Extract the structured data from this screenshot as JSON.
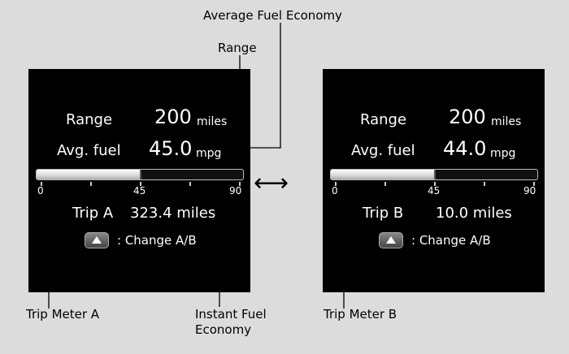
{
  "callouts": {
    "average_fuel_economy": "Average Fuel Economy",
    "range": "Range",
    "trip_meter_a": "Trip Meter A",
    "instant_fuel_economy_line1": "Instant Fuel",
    "instant_fuel_economy_line2": "Economy",
    "trip_meter_b": "Trip Meter B"
  },
  "screen_a": {
    "range_label": "Range",
    "range_value": "200",
    "range_unit": "miles",
    "avg_label": "Avg. fuel",
    "avg_value": "45.0",
    "avg_unit": "mpg",
    "ticks": [
      "0",
      "45",
      "90"
    ],
    "instant_fuel_fraction": 0.5,
    "trip_label": "Trip A",
    "trip_value": "323.4 miles",
    "change_label": ": Change A/B"
  },
  "screen_b": {
    "range_label": "Range",
    "range_value": "200",
    "range_unit": "miles",
    "avg_label": "Avg. fuel",
    "avg_value": "44.0",
    "avg_unit": "mpg",
    "ticks": [
      "0",
      "45",
      "90"
    ],
    "instant_fuel_fraction": 0.5,
    "trip_label": "Trip B",
    "trip_value": "10.0 miles",
    "change_label": ": Change A/B"
  },
  "switch_arrow_icon": "double-arrow-icon"
}
